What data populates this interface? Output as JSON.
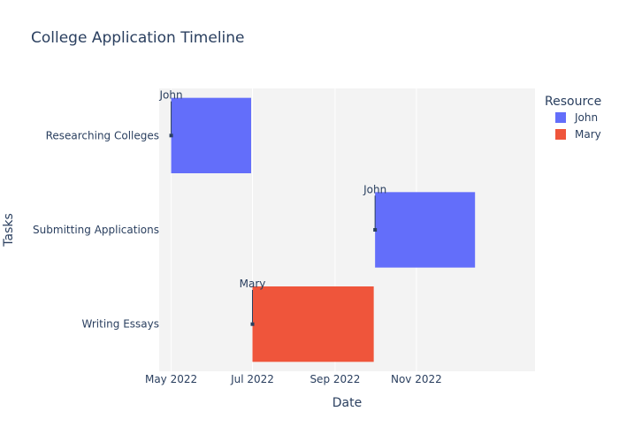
{
  "chart_data": {
    "type": "timeline",
    "title": "College Application Timeline",
    "xlabel": "Date",
    "ylabel": "Tasks",
    "x_range": [
      "2022-04-22",
      "2023-01-29"
    ],
    "x_ticks": [
      {
        "date": "2022-05-01",
        "label": "May 2022"
      },
      {
        "date": "2022-07-01",
        "label": "Jul 2022"
      },
      {
        "date": "2022-09-01",
        "label": "Sep 2022"
      },
      {
        "date": "2022-11-01",
        "label": "Nov 2022"
      }
    ],
    "categories": [
      "Researching Colleges",
      "Submitting Applications",
      "Writing Essays"
    ],
    "legend_title": "Resource",
    "legend_position": "top-right",
    "resources": [
      {
        "name": "John",
        "color": "#636efa"
      },
      {
        "name": "Mary",
        "color": "#ef553b"
      }
    ],
    "tasks": [
      {
        "task": "Researching Colleges",
        "start": "2022-05-01",
        "finish": "2022-06-30",
        "resource": "John"
      },
      {
        "task": "Submitting Applications",
        "start": "2022-10-01",
        "finish": "2022-12-15",
        "resource": "John"
      },
      {
        "task": "Writing Essays",
        "start": "2022-07-01",
        "finish": "2022-09-30",
        "resource": "Mary"
      }
    ],
    "grid": true,
    "plot_background": "#f3f3f3"
  }
}
